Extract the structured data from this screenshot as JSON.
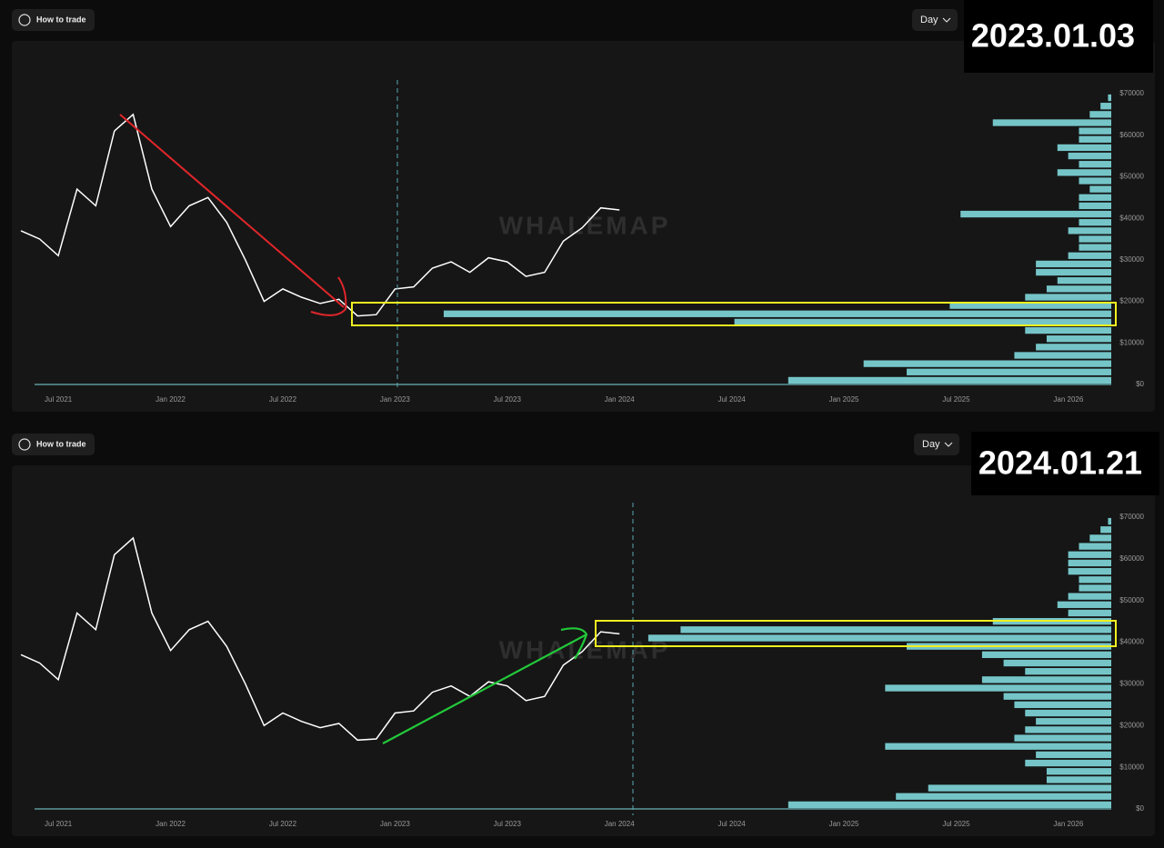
{
  "panels": [
    {
      "button": "How to trade",
      "interval": "Day",
      "date_label": "2023.01.03",
      "watermark": "WHALEMAP"
    },
    {
      "button": "How to trade",
      "interval": "Day",
      "date_label": "2024.01.21",
      "watermark": "WHALEMAP"
    }
  ],
  "chart_data": [
    {
      "type": "line",
      "color": "#ffffff",
      "x": [
        "2021-05",
        "2021-06",
        "2021-07",
        "2021-08",
        "2021-09",
        "2021-10",
        "2021-11",
        "2021-12",
        "2022-01",
        "2022-02",
        "2022-03",
        "2022-04",
        "2022-05",
        "2022-06",
        "2022-07",
        "2022-08",
        "2022-09",
        "2022-10",
        "2022-11",
        "2022-12",
        "2023-01",
        "2023-02",
        "2023-03",
        "2023-04",
        "2023-05",
        "2023-06",
        "2023-07",
        "2023-08",
        "2023-09",
        "2023-10",
        "2023-11",
        "2023-12",
        "2024-01"
      ],
      "values": [
        37000,
        35000,
        31000,
        47000,
        43000,
        61000,
        65000,
        47000,
        38000,
        43000,
        45000,
        39000,
        30000,
        20000,
        23000,
        21000,
        19500,
        20500,
        16500,
        16800,
        23000,
        23500,
        28000,
        29500,
        27000,
        30500,
        29500,
        26000,
        27000,
        34500,
        37700,
        42500,
        42000
      ],
      "xlim": [
        "2021-05",
        "2026-03"
      ],
      "xticks": [
        {
          "value": "2021-07",
          "label": "Jul 2021"
        },
        {
          "value": "2022-01",
          "label": "Jan 2022"
        },
        {
          "value": "2022-07",
          "label": "Jul 2022"
        },
        {
          "value": "2023-01",
          "label": "Jan 2023"
        },
        {
          "value": "2023-07",
          "label": "Jul 2023"
        },
        {
          "value": "2024-01",
          "label": "Jan 2024"
        },
        {
          "value": "2024-07",
          "label": "Jul 2024"
        },
        {
          "value": "2025-01",
          "label": "Jan 2025"
        },
        {
          "value": "2025-07",
          "label": "Jul 2025"
        },
        {
          "value": "2026-01",
          "label": "Jan 2026"
        }
      ],
      "ylim": [
        0,
        70000
      ],
      "yticks": [
        {
          "value": 0,
          "label": "$0"
        },
        {
          "value": 10000,
          "label": "$10000"
        },
        {
          "value": 20000,
          "label": "$20000"
        },
        {
          "value": 30000,
          "label": "$30000"
        },
        {
          "value": 40000,
          "label": "$40000"
        },
        {
          "value": 50000,
          "label": "$50000"
        },
        {
          "value": 60000,
          "label": "$60000"
        },
        {
          "value": 70000,
          "label": "$70000"
        }
      ],
      "volume_profile": {
        "color": "#7fd8dc",
        "xlim": [
          0,
          100
        ],
        "y": [
          1000,
          3000,
          5000,
          7000,
          9000,
          11000,
          13000,
          15000,
          17000,
          19000,
          21000,
          23000,
          25000,
          27000,
          29000,
          31000,
          33000,
          35000,
          37000,
          39000,
          41000,
          43000,
          45000,
          47000,
          49000,
          51000,
          53000,
          55000,
          57000,
          59000,
          61000,
          63000,
          65000,
          67000,
          69000
        ],
        "values": [
          30,
          19,
          23,
          9,
          7,
          6,
          8,
          35,
          62,
          15,
          8,
          6,
          5,
          7,
          7,
          4,
          3,
          3,
          4,
          3,
          14,
          3,
          3,
          2,
          3,
          5,
          3,
          4,
          5,
          3,
          3,
          11,
          2,
          1,
          0.3
        ]
      }
    },
    {
      "type": "line",
      "color": "#ffffff",
      "x": [
        "2021-05",
        "2021-06",
        "2021-07",
        "2021-08",
        "2021-09",
        "2021-10",
        "2021-11",
        "2021-12",
        "2022-01",
        "2022-02",
        "2022-03",
        "2022-04",
        "2022-05",
        "2022-06",
        "2022-07",
        "2022-08",
        "2022-09",
        "2022-10",
        "2022-11",
        "2022-12",
        "2023-01",
        "2023-02",
        "2023-03",
        "2023-04",
        "2023-05",
        "2023-06",
        "2023-07",
        "2023-08",
        "2023-09",
        "2023-10",
        "2023-11",
        "2023-12",
        "2024-01"
      ],
      "values": [
        37000,
        35000,
        31000,
        47000,
        43000,
        61000,
        65000,
        47000,
        38000,
        43000,
        45000,
        39000,
        30000,
        20000,
        23000,
        21000,
        19500,
        20500,
        16500,
        16800,
        23000,
        23500,
        28000,
        29500,
        27000,
        30500,
        29500,
        26000,
        27000,
        34500,
        37700,
        42500,
        42000
      ],
      "xlim": [
        "2021-05",
        "2026-03"
      ],
      "xticks": [
        {
          "value": "2021-07",
          "label": "Jul 2021"
        },
        {
          "value": "2022-01",
          "label": "Jan 2022"
        },
        {
          "value": "2022-07",
          "label": "Jul 2022"
        },
        {
          "value": "2023-01",
          "label": "Jan 2023"
        },
        {
          "value": "2023-07",
          "label": "Jul 2023"
        },
        {
          "value": "2024-01",
          "label": "Jan 2024"
        },
        {
          "value": "2024-07",
          "label": "Jul 2024"
        },
        {
          "value": "2025-01",
          "label": "Jan 2025"
        },
        {
          "value": "2025-07",
          "label": "Jul 2025"
        },
        {
          "value": "2026-01",
          "label": "Jan 2026"
        }
      ],
      "ylim": [
        0,
        70000
      ],
      "yticks": [
        {
          "value": 0,
          "label": "$0"
        },
        {
          "value": 10000,
          "label": "$10000"
        },
        {
          "value": 20000,
          "label": "$20000"
        },
        {
          "value": 30000,
          "label": "$30000"
        },
        {
          "value": 40000,
          "label": "$40000"
        },
        {
          "value": 50000,
          "label": "$50000"
        },
        {
          "value": 60000,
          "label": "$60000"
        },
        {
          "value": 70000,
          "label": "$70000"
        }
      ],
      "volume_profile": {
        "color": "#7fd8dc",
        "xlim": [
          0,
          100
        ],
        "y": [
          1000,
          3000,
          5000,
          7000,
          9000,
          11000,
          13000,
          15000,
          17000,
          19000,
          21000,
          23000,
          25000,
          27000,
          29000,
          31000,
          33000,
          35000,
          37000,
          39000,
          41000,
          43000,
          45000,
          47000,
          49000,
          51000,
          53000,
          55000,
          57000,
          59000,
          61000,
          63000,
          65000,
          67000,
          69000
        ],
        "values": [
          30,
          20,
          17,
          6,
          6,
          8,
          7,
          21,
          9,
          8,
          7,
          8,
          9,
          10,
          21,
          12,
          8,
          10,
          12,
          19,
          43,
          40,
          11,
          4,
          5,
          4,
          3,
          3,
          4,
          4,
          4,
          3,
          2,
          1,
          0.3
        ]
      }
    }
  ]
}
